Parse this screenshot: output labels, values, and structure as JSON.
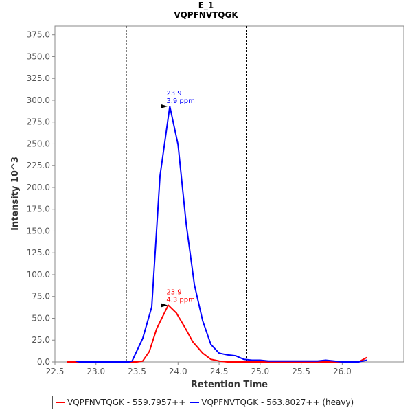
{
  "chart_data": {
    "type": "line",
    "title": "E_1",
    "subtitle": "VQPFNVTQGK",
    "xlabel": "Retention Time",
    "ylabel": "Intensity 10^3",
    "xlim": [
      22.5,
      26.75
    ],
    "ylim": [
      0,
      385
    ],
    "x_ticks": [
      "22.5",
      "23.0",
      "23.5",
      "24.0",
      "24.5",
      "25.0",
      "25.5",
      "26.0"
    ],
    "y_ticks": [
      "0.0",
      "25.0",
      "50.0",
      "75.0",
      "100.0",
      "125.0",
      "150.0",
      "175.0",
      "200.0",
      "225.0",
      "250.0",
      "275.0",
      "300.0",
      "325.0",
      "350.0",
      "375.0"
    ],
    "integration_boundaries": [
      23.37,
      24.83
    ],
    "grid": false,
    "legend_position": "bottom",
    "series": [
      {
        "name": "VQPFNVTQGK - 559.7957++",
        "color": "#ff0000",
        "x": [
          22.65,
          22.75,
          22.9,
          23.0,
          23.1,
          23.2,
          23.3,
          23.4,
          23.5,
          23.57,
          23.65,
          23.74,
          23.88,
          23.98,
          24.08,
          24.18,
          24.3,
          24.4,
          24.5,
          24.6,
          24.7,
          24.8,
          24.9,
          25.0,
          25.1,
          25.2,
          25.3,
          25.4,
          25.5,
          25.6,
          25.7,
          25.8,
          25.9,
          26.0,
          26.1,
          26.2,
          26.3
        ],
        "y": [
          0,
          0,
          0,
          0,
          0,
          0,
          0,
          0,
          0,
          1,
          12,
          38,
          65,
          56,
          40,
          23,
          10,
          3,
          1,
          0,
          0,
          0,
          0,
          0,
          0,
          0,
          0,
          0,
          0,
          0,
          0,
          0,
          0,
          0,
          0,
          0,
          5
        ],
        "annotation": {
          "x": 23.9,
          "y": 65,
          "label1": "23.9",
          "label2": "4.3 ppm"
        }
      },
      {
        "name": "VQPFNVTQGK - 563.8027++ (heavy)",
        "color": "#0000ff",
        "x": [
          22.75,
          22.8,
          22.9,
          23.0,
          23.1,
          23.2,
          23.3,
          23.4,
          23.44,
          23.57,
          23.68,
          23.78,
          23.9,
          24.0,
          24.1,
          24.2,
          24.3,
          24.4,
          24.5,
          24.6,
          24.7,
          24.8,
          24.9,
          25.0,
          25.1,
          25.2,
          25.3,
          25.4,
          25.5,
          25.6,
          25.7,
          25.8,
          25.9,
          26.0,
          26.1,
          26.2,
          26.3
        ],
        "y": [
          1,
          0,
          0,
          0,
          0,
          0,
          0,
          0,
          1,
          27,
          63,
          213,
          293,
          249,
          158,
          88,
          47,
          20,
          10,
          8,
          7,
          3,
          2,
          2,
          1,
          1,
          1,
          1,
          1,
          1,
          1,
          2,
          1,
          0,
          0,
          0,
          2
        ],
        "annotation": {
          "x": 23.9,
          "y": 293,
          "label1": "23.9",
          "label2": "3.9 ppm"
        }
      }
    ]
  }
}
